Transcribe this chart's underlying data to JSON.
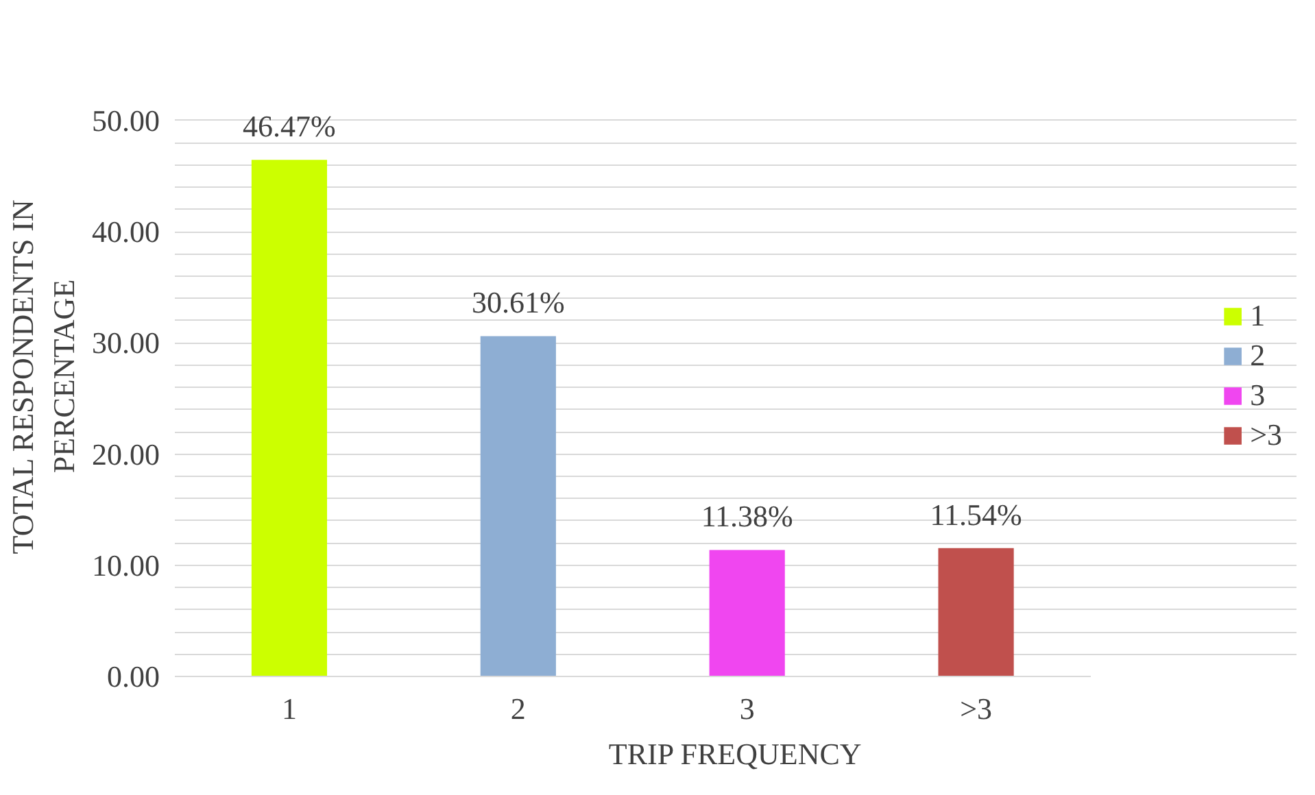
{
  "chart_data": {
    "type": "bar",
    "xlabel": "TRIP FREQUENCY",
    "ylabel": "TOTAL RESPONDENTS IN\nPERCENTAGE",
    "categories": [
      "1",
      "2",
      "3",
      ">3"
    ],
    "series": [
      {
        "name": "1",
        "color": "#ccff00",
        "values": [
          46.47,
          null,
          null,
          null
        ],
        "value_labels": [
          "46.47%",
          null,
          null,
          null
        ]
      },
      {
        "name": "2",
        "color": "#8eaed3",
        "values": [
          null,
          30.61,
          null,
          null
        ],
        "value_labels": [
          null,
          "30.61%",
          null,
          null
        ]
      },
      {
        "name": "3",
        "color": "#f046f0",
        "values": [
          null,
          null,
          11.38,
          null
        ],
        "value_labels": [
          null,
          null,
          "11.38%",
          null
        ]
      },
      {
        "name": ">3",
        "color": "#c0504d",
        "values": [
          null,
          null,
          null,
          11.54
        ],
        "value_labels": [
          null,
          null,
          null,
          "11.54%"
        ]
      }
    ],
    "ylim": [
      0,
      50
    ],
    "yticks": [
      {
        "value": 0,
        "label": "0.00"
      },
      {
        "value": 2,
        "label": null
      },
      {
        "value": 4,
        "label": null
      },
      {
        "value": 6,
        "label": null
      },
      {
        "value": 8,
        "label": null
      },
      {
        "value": 10,
        "label": "10.00"
      },
      {
        "value": 12,
        "label": null
      },
      {
        "value": 14,
        "label": null
      },
      {
        "value": 16,
        "label": null
      },
      {
        "value": 18,
        "label": null
      },
      {
        "value": 20,
        "label": "20.00"
      },
      {
        "value": 22,
        "label": null
      },
      {
        "value": 24,
        "label": null
      },
      {
        "value": 26,
        "label": null
      },
      {
        "value": 28,
        "label": null
      },
      {
        "value": 30,
        "label": "30.00"
      },
      {
        "value": 32,
        "label": null
      },
      {
        "value": 34,
        "label": null
      },
      {
        "value": 36,
        "label": null
      },
      {
        "value": 38,
        "label": null
      },
      {
        "value": 40,
        "label": "40.00"
      },
      {
        "value": 42,
        "label": null
      },
      {
        "value": 44,
        "label": null
      },
      {
        "value": 46,
        "label": null
      },
      {
        "value": 48,
        "label": null
      },
      {
        "value": 50,
        "label": "50.00"
      }
    ],
    "grid": "y",
    "legend": "right"
  }
}
